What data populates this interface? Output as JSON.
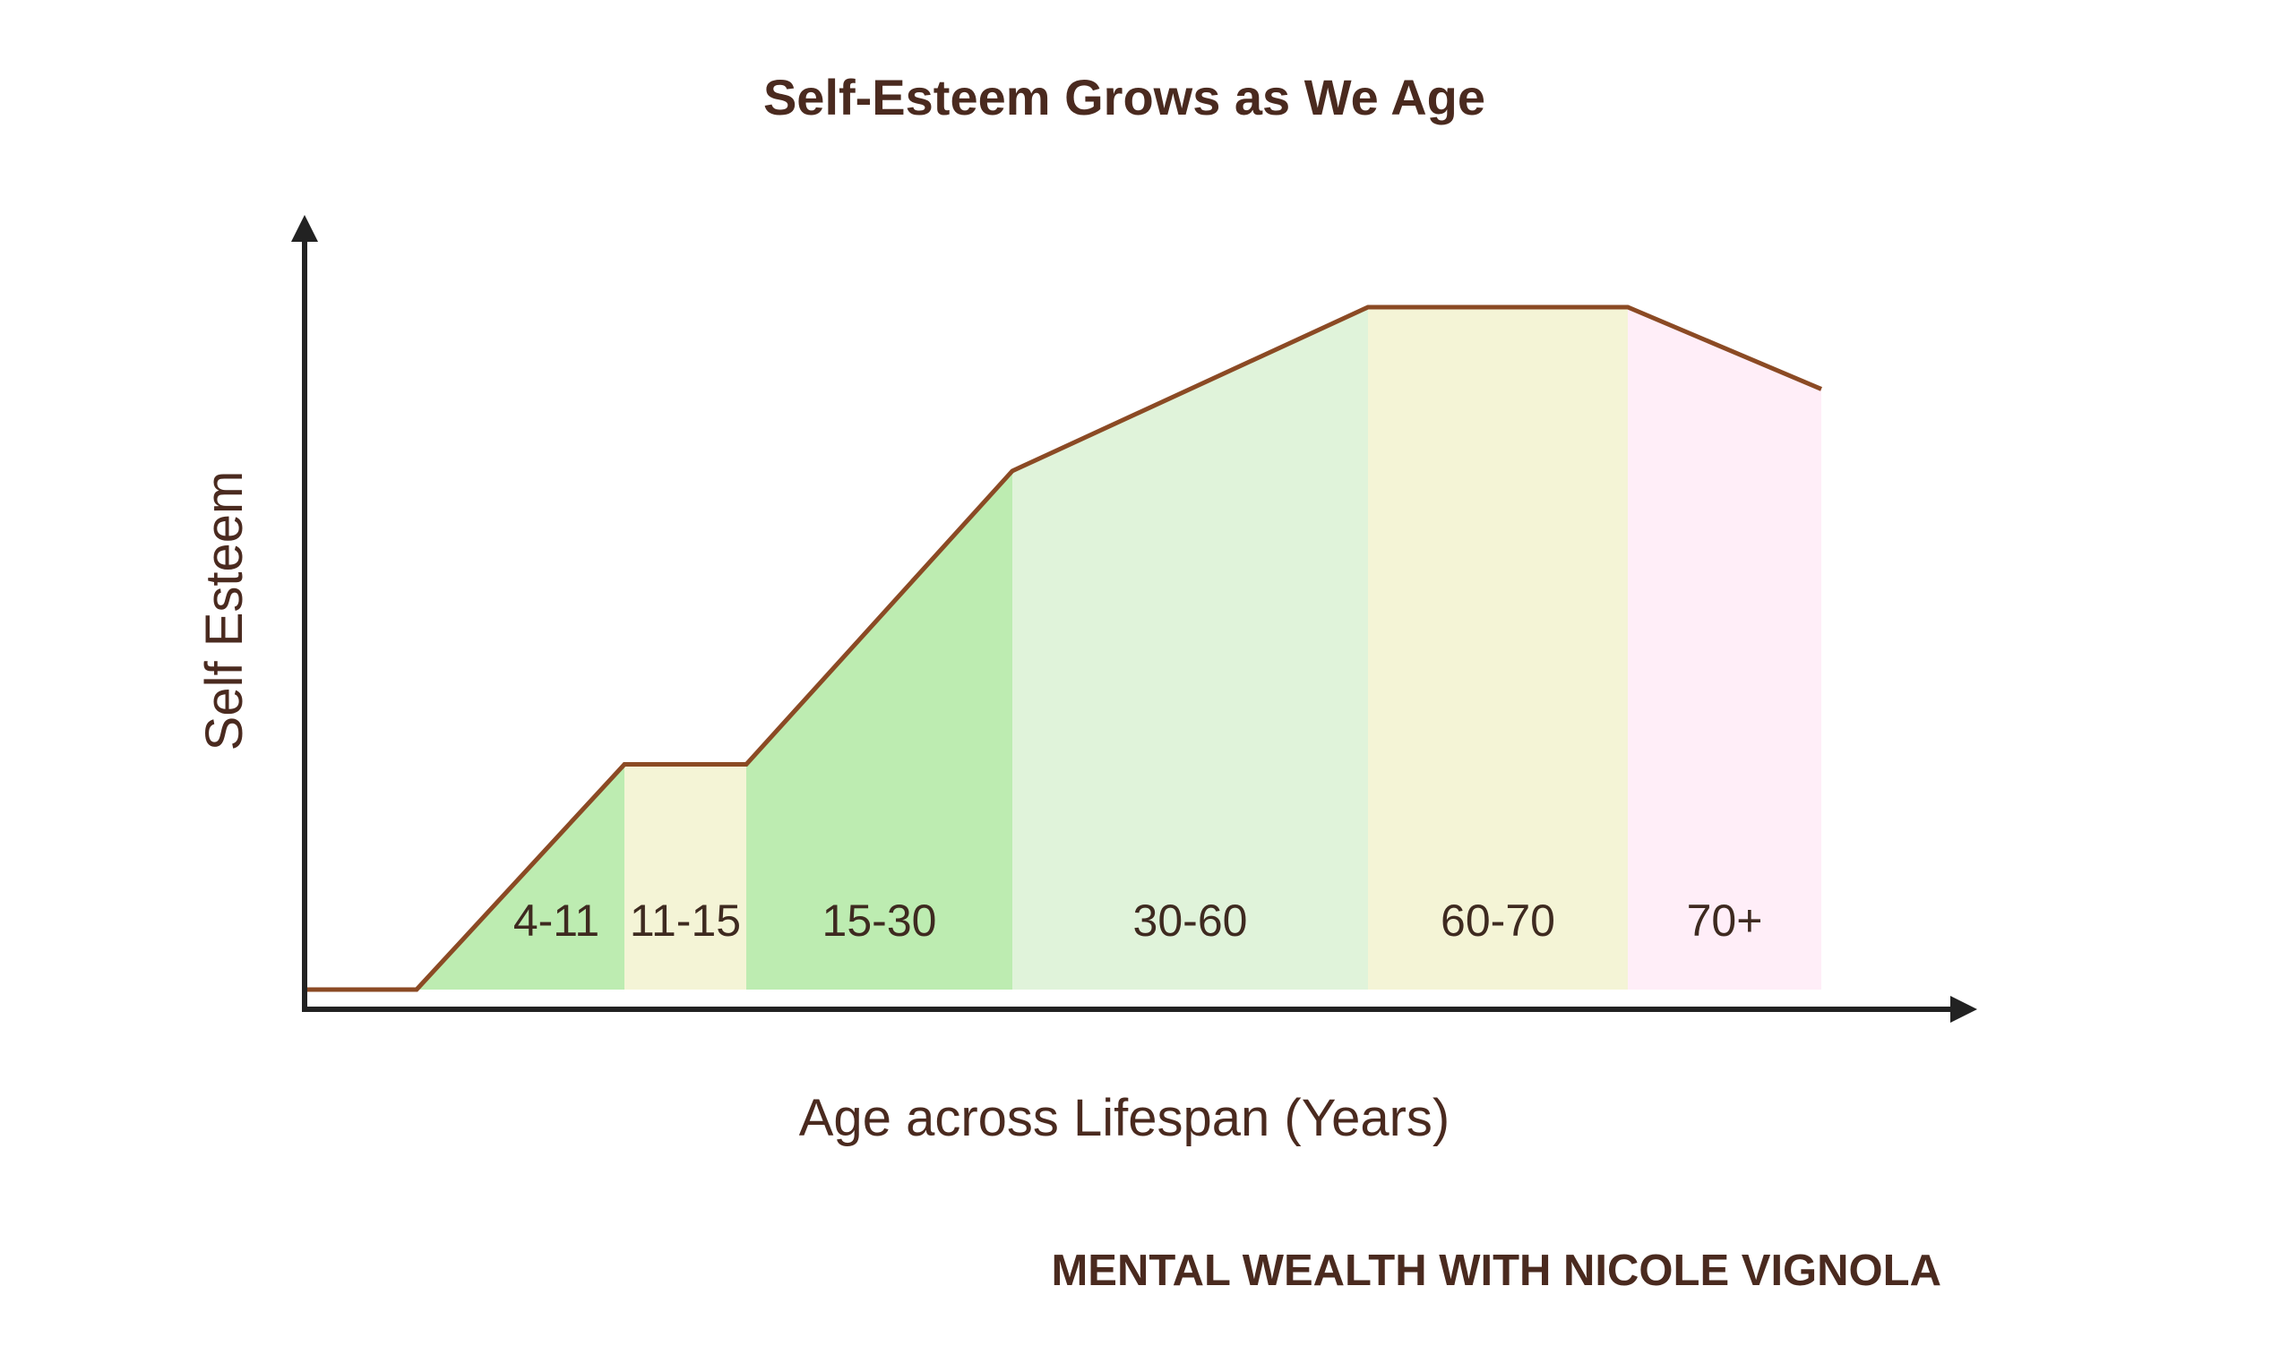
{
  "chart_data": {
    "type": "area",
    "title": "Self-Esteem Grows as We Age",
    "xlabel": "Age across Lifespan (Years)",
    "ylabel": "Self Esteem",
    "credit": "MENTAL WEALTH WITH NICOLE VIGNOLA",
    "grid": false,
    "axis_ticks": false,
    "line_color": "#8b4a24",
    "axis_color": "#222222",
    "y_scale": "relative (no ticks): 0 = lowest, 1 = peak",
    "segments": [
      {
        "label": "4-11",
        "color": "#bdecb1",
        "shape": "rising",
        "start": 0.0,
        "end": 0.33
      },
      {
        "label": "11-15",
        "color": "#f4f4d6",
        "shape": "flat",
        "start": 0.33,
        "end": 0.33
      },
      {
        "label": "15-30",
        "color": "#bdecb1",
        "shape": "rising",
        "start": 0.33,
        "end": 0.76
      },
      {
        "label": "30-60",
        "color": "#e0f3da",
        "shape": "rising",
        "start": 0.76,
        "end": 1.0
      },
      {
        "label": "60-70",
        "color": "#f4f4d6",
        "shape": "flat",
        "start": 1.0,
        "end": 1.0
      },
      {
        "label": "70+",
        "color": "#ffeef8",
        "shape": "falling",
        "start": 1.0,
        "end": 0.88
      }
    ]
  }
}
